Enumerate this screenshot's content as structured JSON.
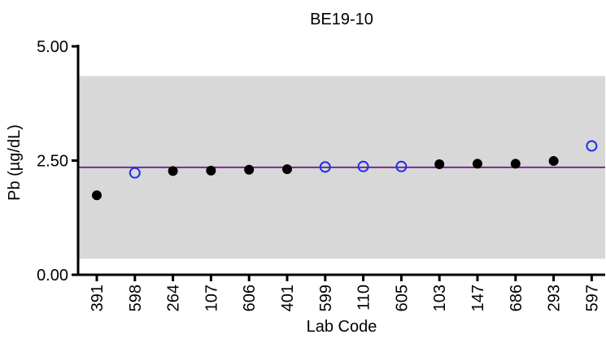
{
  "chart_data": {
    "type": "scatter",
    "title": "BE19-10",
    "xlabel": "Lab Code",
    "ylabel": "Pb (µg/dL)",
    "ylim": [
      0,
      5
    ],
    "yticks": [
      0,
      2.5,
      5
    ],
    "ytick_labels": [
      "0.00",
      "2.50",
      "5.00"
    ],
    "categories": [
      "391",
      "598",
      "264",
      "107",
      "606",
      "401",
      "599",
      "110",
      "605",
      "103",
      "147",
      "686",
      "293",
      "597"
    ],
    "values": [
      1.74,
      2.23,
      2.27,
      2.28,
      2.3,
      2.31,
      2.36,
      2.37,
      2.37,
      2.42,
      2.43,
      2.43,
      2.49,
      2.82
    ],
    "marker_style": [
      "filled",
      "open",
      "filled",
      "filled",
      "filled",
      "filled",
      "open",
      "open",
      "open",
      "filled",
      "filled",
      "filled",
      "filled",
      "open"
    ],
    "target_value": 2.35,
    "acceptable_range": [
      0.35,
      4.35
    ],
    "grid": false,
    "colors": {
      "filled_marker": "#000000",
      "open_marker": "#1f2ff0",
      "target_line": "#7b2a8e",
      "range_band": "#d8d8d8",
      "axis": "#000000"
    }
  }
}
